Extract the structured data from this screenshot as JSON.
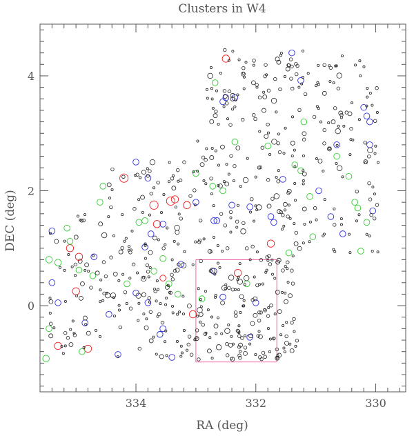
{
  "chart_data": {
    "type": "scatter",
    "title": "Clusters in W4",
    "xlabel": "RA (deg)",
    "ylabel": "DEC (deg)",
    "xlim": [
      335.6,
      329.5
    ],
    "ylim": [
      -1.5,
      4.9
    ],
    "x_inverted": true,
    "x_ticks": [
      334,
      332,
      330
    ],
    "y_ticks": [
      0,
      2,
      4
    ],
    "x_tick_labels": [
      "334",
      "332",
      "330"
    ],
    "y_tick_labels": [
      "0",
      "2",
      "4"
    ],
    "grid": false,
    "legend": "none",
    "colors": {
      "black": "#222222",
      "blue": "#2b2bdd",
      "green": "#33cc33",
      "red": "#ee2222",
      "box": "#ee66aa",
      "axis": "#555555"
    },
    "region_box": {
      "ra": [
        333.0,
        331.65
      ],
      "dec": [
        -0.98,
        0.8
      ],
      "color": "#ee66aa"
    },
    "series": [
      {
        "color": "red",
        "points": [
          [
            334.2,
            2.22,
            0.07
          ],
          [
            333.7,
            1.75,
            0.07
          ],
          [
            333.42,
            1.82,
            0.07
          ],
          [
            333.35,
            1.85,
            0.06
          ],
          [
            333.15,
            1.75,
            0.06
          ],
          [
            333.65,
            1.42,
            0.06
          ],
          [
            334.95,
            0.85,
            0.06
          ],
          [
            335.1,
            1.0,
            0.06
          ],
          [
            335.0,
            0.25,
            0.06
          ],
          [
            335.3,
            -0.7,
            0.06
          ],
          [
            334.8,
            -0.75,
            0.06
          ],
          [
            333.05,
            -0.15,
            0.06
          ],
          [
            333.55,
            0.48,
            0.05
          ],
          [
            332.5,
            4.3,
            0.06
          ],
          [
            331.75,
            1.08,
            0.06
          ],
          [
            332.3,
            0.57,
            0.06
          ]
        ]
      },
      {
        "color": "green",
        "points": [
          [
            335.45,
            0.8,
            0.055
          ],
          [
            335.3,
            0.75,
            0.055
          ],
          [
            335.15,
            1.35,
            0.05
          ],
          [
            335.1,
            1.12,
            0.05
          ],
          [
            334.95,
            0.62,
            0.05
          ],
          [
            335.5,
            -0.92,
            0.055
          ],
          [
            335.45,
            -0.4,
            0.05
          ],
          [
            334.9,
            -0.8,
            0.05
          ],
          [
            334.72,
            0.52,
            0.05
          ],
          [
            334.6,
            1.8,
            0.05
          ],
          [
            334.55,
            2.08,
            0.05
          ],
          [
            334.15,
            0.38,
            0.05
          ],
          [
            333.95,
            1.45,
            0.05
          ],
          [
            333.85,
            1.48,
            0.05
          ],
          [
            333.55,
            0.82,
            0.05
          ],
          [
            333.6,
            -0.5,
            0.05
          ],
          [
            333.45,
            0.38,
            0.05
          ],
          [
            333.3,
            0.2,
            0.05
          ],
          [
            333.0,
            2.3,
            0.05
          ],
          [
            332.68,
            3.88,
            0.05
          ],
          [
            332.72,
            2.08,
            0.05
          ],
          [
            332.55,
            2.0,
            0.05
          ],
          [
            332.35,
            2.85,
            0.05
          ],
          [
            332.15,
            0.38,
            0.05
          ],
          [
            331.8,
            2.78,
            0.05
          ],
          [
            331.35,
            2.45,
            0.05
          ],
          [
            331.25,
            2.35,
            0.05
          ],
          [
            331.2,
            3.2,
            0.05
          ],
          [
            331.1,
            1.9,
            0.05
          ],
          [
            331.05,
            1.2,
            0.05
          ],
          [
            330.65,
            2.6,
            0.05
          ],
          [
            330.45,
            2.25,
            0.05
          ],
          [
            330.35,
            1.8,
            0.05
          ],
          [
            330.3,
            1.7,
            0.05
          ],
          [
            330.15,
            1.45,
            0.05
          ],
          [
            330.25,
            0.95,
            0.05
          ],
          [
            333.7,
            0.6,
            0.05
          ],
          [
            332.9,
            0.12,
            0.05
          ],
          [
            331.45,
            0.92,
            0.05
          ]
        ]
      },
      {
        "color": "blue",
        "points": [
          [
            334.0,
            2.5,
            0.05
          ],
          [
            333.8,
            2.22,
            0.05
          ],
          [
            333.55,
            1.42,
            0.05
          ],
          [
            333.75,
            1.25,
            0.05
          ],
          [
            334.7,
            0.85,
            0.05
          ],
          [
            335.4,
            0.4,
            0.05
          ],
          [
            335.3,
            0.05,
            0.05
          ],
          [
            335.4,
            1.3,
            0.05
          ],
          [
            334.85,
            -0.3,
            0.05
          ],
          [
            334.3,
            -0.85,
            0.05
          ],
          [
            333.6,
            -0.5,
            0.05
          ],
          [
            333.55,
            -0.4,
            0.05
          ],
          [
            333.4,
            -0.9,
            0.05
          ],
          [
            333.25,
            0.72,
            0.05
          ],
          [
            333.0,
            1.8,
            0.05
          ],
          [
            332.65,
            1.48,
            0.05
          ],
          [
            332.7,
            1.48,
            0.05
          ],
          [
            332.55,
            3.55,
            0.05
          ],
          [
            332.5,
            3.62,
            0.05
          ],
          [
            332.35,
            3.62,
            0.05
          ],
          [
            332.4,
            1.75,
            0.05
          ],
          [
            332.1,
            1.72,
            0.05
          ],
          [
            332.0,
            0.05,
            0.05
          ],
          [
            332.1,
            -0.55,
            0.05
          ],
          [
            331.75,
            1.55,
            0.05
          ],
          [
            331.7,
            1.45,
            0.05
          ],
          [
            331.4,
            4.4,
            0.05
          ],
          [
            331.25,
            3.92,
            0.05
          ],
          [
            330.95,
            2.0,
            0.05
          ],
          [
            330.75,
            1.55,
            0.05
          ],
          [
            330.65,
            2.8,
            0.05
          ],
          [
            330.55,
            1.25,
            0.05
          ],
          [
            330.2,
            3.45,
            0.05
          ],
          [
            330.15,
            3.3,
            0.05
          ],
          [
            330.1,
            3.2,
            0.05
          ],
          [
            330.1,
            2.8,
            0.05
          ],
          [
            330.05,
            1.65,
            0.05
          ],
          [
            332.7,
            0.6,
            0.05
          ],
          [
            332.55,
            0.15,
            0.05
          ],
          [
            333.85,
            1.02,
            0.05
          ],
          [
            334.45,
            -0.15,
            0.05
          ],
          [
            333.8,
            0.05,
            0.05
          ],
          [
            334.0,
            0.22,
            0.05
          ],
          [
            331.55,
            2.2,
            0.05
          ]
        ]
      },
      {
        "color": "black",
        "generated_points": 650,
        "seed": 4,
        "regions": [
          {
            "ra": [
              335.45,
              334.5
            ],
            "dec": [
              -0.9,
              1.6
            ]
          },
          {
            "ra": [
              334.5,
              333.0
            ],
            "dec": [
              -0.9,
              2.5
            ]
          },
          {
            "ra": [
              333.0,
              331.3
            ],
            "dec": [
              -0.95,
              4.45
            ]
          },
          {
            "ra": [
              331.3,
              329.95
            ],
            "dec": [
              0.9,
              4.45
            ]
          },
          {
            "ra": [
              333.0,
              331.3
            ],
            "dec": [
              -0.95,
              0.95
            ]
          }
        ]
      }
    ]
  }
}
